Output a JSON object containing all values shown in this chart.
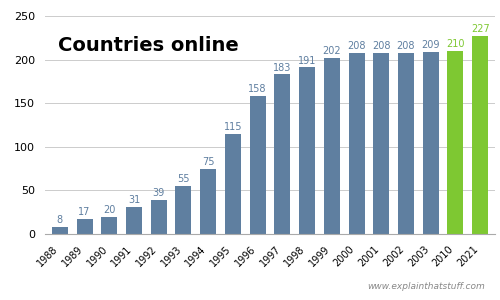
{
  "years": [
    "1988",
    "1989",
    "1990",
    "1991",
    "1992",
    "1993",
    "1994",
    "1995",
    "1996",
    "1997",
    "1998",
    "1999",
    "2000",
    "2001",
    "2002",
    "2003",
    "2010",
    "2021"
  ],
  "values": [
    8,
    17,
    20,
    31,
    39,
    55,
    75,
    115,
    158,
    183,
    191,
    202,
    208,
    208,
    208,
    209,
    210,
    227
  ],
  "bar_colors": [
    "#5f7fa0",
    "#5f7fa0",
    "#5f7fa0",
    "#5f7fa0",
    "#5f7fa0",
    "#5f7fa0",
    "#5f7fa0",
    "#5f7fa0",
    "#5f7fa0",
    "#5f7fa0",
    "#5f7fa0",
    "#5f7fa0",
    "#5f7fa0",
    "#5f7fa0",
    "#5f7fa0",
    "#5f7fa0",
    "#7ec832",
    "#7ec832"
  ],
  "title": "Countries online",
  "yticks": [
    0,
    50,
    100,
    150,
    200,
    250
  ],
  "ylim": [
    0,
    258
  ],
  "label_color": "#5f7fa0",
  "label_color_green": "#7ec832",
  "watermark": "www.explainthatstuff.com",
  "bg_color": "#ffffff",
  "label_fontsize": 7.0,
  "title_fontsize": 14,
  "bar_width": 0.65
}
